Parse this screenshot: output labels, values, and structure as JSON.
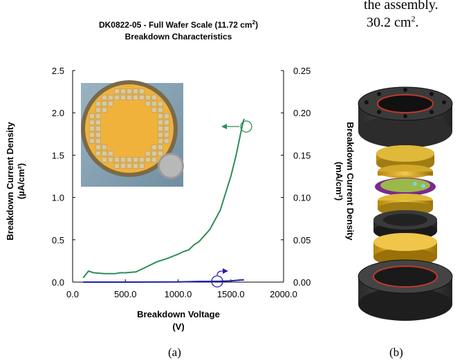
{
  "text_fragment": {
    "line1": "the assembly.",
    "line2_value": "30.2 cm",
    "line2_sup": "2",
    "line2_end": "."
  },
  "captions": {
    "a": "(a)",
    "b": "(b)"
  },
  "chart_data": {
    "type": "line",
    "title_line1": "DK0822-05 - Full Wafer Scale (11.72 cm",
    "title_sup": "2",
    "title_line1_end": ")",
    "title_line2": "Breakdown Characteristics",
    "xlabel_line1": "Breakdown Voltage",
    "xlabel_line2": "(V)",
    "ylabel_left_line1": "Breakdown Current Density",
    "ylabel_left_line2": "(µA/cm²)",
    "ylabel_right_line1": "Breakdown Current Density",
    "ylabel_right_line2": "(mA/cm²)",
    "xlim": [
      0,
      2000
    ],
    "ylim_left": [
      0,
      2.5
    ],
    "ylim_right": [
      0,
      0.25
    ],
    "x_ticks": [
      "0.0",
      "500.0",
      "1000.0",
      "1500.0",
      "2000.0"
    ],
    "y_left_ticks": [
      "0.0",
      "0.5",
      "1.0",
      "1.5",
      "2.0",
      "2.5"
    ],
    "y_right_ticks": [
      "0.00",
      "0.05",
      "0.10",
      "0.15",
      "0.20",
      "0.25"
    ],
    "series": [
      {
        "axis": "left",
        "color": "#2e8b57",
        "x": [
          100,
          150,
          200,
          300,
          400,
          450,
          500,
          600,
          700,
          800,
          900,
          1000,
          1050,
          1100,
          1150,
          1200,
          1300,
          1400,
          1450,
          1500,
          1550,
          1600,
          1625
        ],
        "y": [
          0.05,
          0.13,
          0.11,
          0.1,
          0.1,
          0.11,
          0.11,
          0.12,
          0.18,
          0.24,
          0.28,
          0.33,
          0.36,
          0.38,
          0.44,
          0.48,
          0.62,
          0.85,
          1.05,
          1.25,
          1.5,
          1.8,
          1.93
        ]
      },
      {
        "axis": "right",
        "color": "#1f1fa8",
        "x": [
          100,
          500,
          1000,
          1100,
          1200,
          1300,
          1400,
          1500,
          1600,
          1625
        ],
        "y": [
          0.0,
          0.0,
          0.0002,
          0.0005,
          0.0008,
          0.0008,
          0.001,
          0.0015,
          0.0025,
          0.0027
        ]
      }
    ],
    "grid": false,
    "inset_photo": "wafer-photo",
    "colors": {
      "green": "#2e8b57",
      "blue": "#1f1fa8",
      "wafer": "#f0b23a",
      "photo_bg": "#8aa6b8"
    }
  },
  "assembly_image": "exploded-assembly-render"
}
